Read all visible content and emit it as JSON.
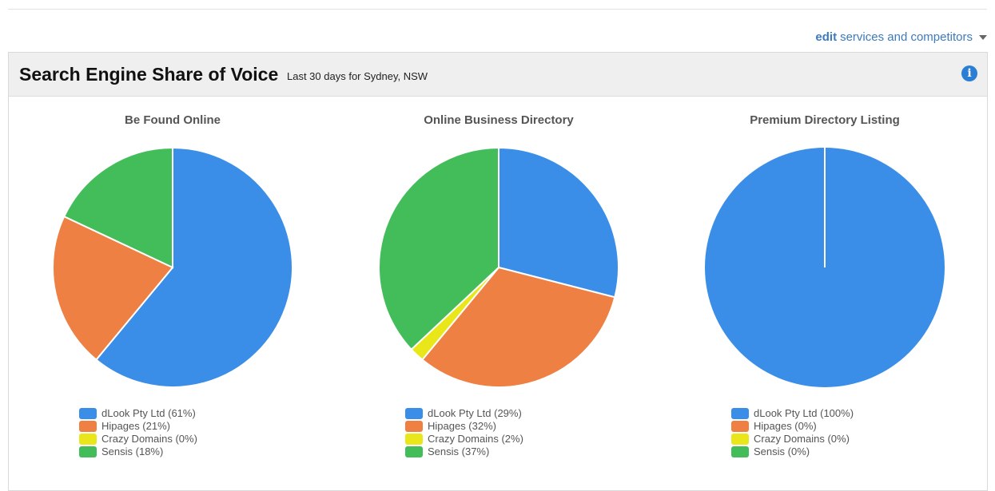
{
  "edit_link": {
    "edit": "edit",
    "rest": "services and competitors"
  },
  "panel": {
    "title": "Search Engine Share of Voice",
    "subtitle": "Last 30 days for Sydney, NSW",
    "info_icon": "info-icon"
  },
  "colors": {
    "dlook": "#3a8ee8",
    "hipages": "#ef8044",
    "crazy_domains": "#e9e619",
    "sensis": "#42bd5a"
  },
  "chart_data": [
    {
      "type": "pie",
      "title": "Be Found Online",
      "labels": [
        "dLook Pty Ltd",
        "Hipages",
        "Crazy Domains",
        "Sensis"
      ],
      "values": [
        61,
        21,
        0,
        18
      ],
      "legend": [
        "dLook Pty Ltd (61%)",
        "Hipages (21%)",
        "Crazy Domains (0%)",
        "Sensis (18%)"
      ]
    },
    {
      "type": "pie",
      "title": "Online Business Directory",
      "labels": [
        "dLook Pty Ltd",
        "Hipages",
        "Crazy Domains",
        "Sensis"
      ],
      "values": [
        29,
        32,
        2,
        37
      ],
      "legend": [
        "dLook Pty Ltd (29%)",
        "Hipages (32%)",
        "Crazy Domains (2%)",
        "Sensis (37%)"
      ]
    },
    {
      "type": "pie",
      "title": "Premium Directory Listing",
      "labels": [
        "dLook Pty Ltd",
        "Hipages",
        "Crazy Domains",
        "Sensis"
      ],
      "values": [
        100,
        0,
        0,
        0
      ],
      "legend": [
        "dLook Pty Ltd (100%)",
        "Hipages (0%)",
        "Crazy Domains (0%)",
        "Sensis (0%)"
      ]
    }
  ]
}
